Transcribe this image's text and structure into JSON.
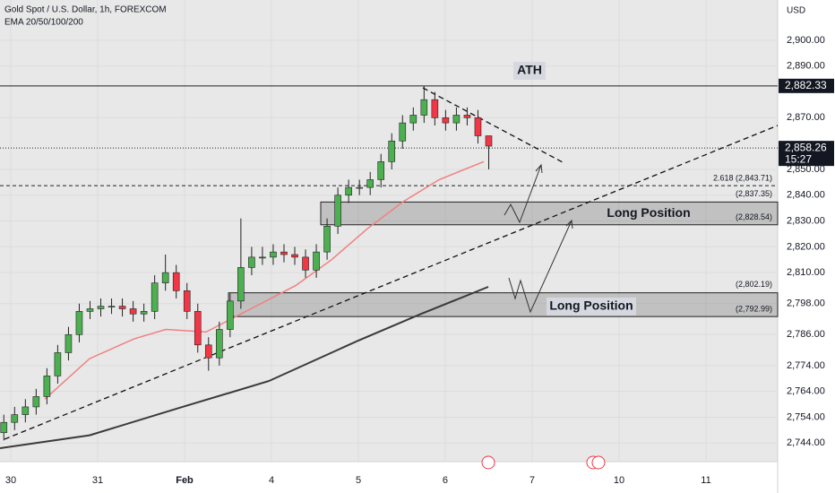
{
  "chart_data": {
    "type": "candlestick",
    "title": "Gold Spot / U.S. Dollar, 1h, FOREXCOM",
    "subtitle": "EMA 20/50/100/200",
    "currency": "USD",
    "x": [
      -0.08,
      0.044,
      0.168,
      0.292,
      0.416,
      0.54,
      0.664,
      0.788,
      0.912,
      1.036,
      1.16,
      1.284,
      1.408,
      1.532,
      1.656,
      1.78,
      1.904,
      2.028,
      2.152,
      2.276,
      2.4,
      2.524,
      2.648,
      2.772,
      2.896,
      3.02,
      3.144,
      3.268,
      3.392,
      3.516,
      3.64,
      3.764,
      3.888,
      4.012,
      4.136,
      4.26,
      4.384,
      4.508,
      4.632,
      4.756,
      4.88,
      5.004,
      5.128,
      5.252,
      5.376,
      5.5
    ],
    "open": [
      2748,
      2752,
      2755,
      2758,
      2762,
      2770,
      2779,
      2786,
      2795,
      2796,
      2797,
      2797,
      2796,
      2794,
      2795,
      2806,
      2810,
      2803,
      2795,
      2782,
      2777,
      2788,
      2799,
      2812,
      2816,
      2816,
      2818,
      2817,
      2816,
      2811,
      2818,
      2828,
      2840,
      2843,
      2843,
      2846,
      2853,
      2861,
      2868,
      2871,
      2877,
      2870,
      2868,
      2871,
      2870,
      2863
    ],
    "high": [
      2755,
      2758,
      2761,
      2765,
      2773,
      2782,
      2789,
      2798,
      2799,
      2800,
      2800,
      2800,
      2799,
      2798,
      2809,
      2817,
      2813,
      2806,
      2798,
      2785,
      2791,
      2802,
      2831,
      2820,
      2820,
      2821,
      2821,
      2820,
      2819,
      2821,
      2831,
      2843,
      2846,
      2846,
      2849,
      2856,
      2864,
      2871,
      2874,
      2882.33,
      2880,
      2873,
      2874,
      2874,
      2873,
      2862
    ],
    "low": [
      2745,
      2749,
      2752,
      2755,
      2759,
      2767,
      2776,
      2783,
      2792,
      2793,
      2794,
      2793,
      2791,
      2791,
      2792,
      2803,
      2800,
      2792,
      2779,
      2772,
      2774,
      2785,
      2796,
      2809,
      2813,
      2813,
      2814,
      2813,
      2808,
      2808,
      2815,
      2825,
      2837,
      2840,
      2840,
      2843,
      2850,
      2858,
      2865,
      2868,
      2867,
      2865,
      2865,
      2867,
      2860,
      2850
    ],
    "close": [
      2752,
      2755,
      2758,
      2762,
      2770,
      2779,
      2786,
      2795,
      2796,
      2797,
      2797,
      2796,
      2794,
      2795,
      2806,
      2810,
      2803,
      2795,
      2782,
      2777,
      2788,
      2799,
      2812,
      2816,
      2816,
      2818,
      2817,
      2816,
      2811,
      2818,
      2828,
      2840,
      2843,
      2843,
      2846,
      2853,
      2861,
      2868,
      2871,
      2877,
      2870,
      2868,
      2871,
      2870,
      2863,
      2859
    ],
    "up_color": "#4caf50",
    "down_color": "#f23645",
    "lines": [
      {
        "color": "#f08080",
        "x": [
          0.392,
          0.907,
          1.423,
          1.784,
          2.247,
          2.763,
          3.278,
          3.691,
          4.103,
          4.515,
          4.928,
          5.443
        ],
        "values": [
          2761,
          2776.7,
          2784.4,
          2788,
          2787,
          2796,
          2805,
          2815,
          2827,
          2837.5,
          2846,
          2853
        ]
      },
      {
        "color": "#3a3a3a",
        "x": [
          -0.124,
          0.907,
          1.938,
          2.969,
          4,
          4.722,
          5.495
        ],
        "values": [
          2742,
          2747,
          2757.6,
          2768,
          2783.7,
          2794,
          2804.5
        ]
      }
    ],
    "xlim": [
      -0.124,
      8.825
    ],
    "xticks": [
      {
        "value": 0,
        "label": "30"
      },
      {
        "value": 1,
        "label": "31"
      },
      {
        "value": 2,
        "label": "Feb"
      },
      {
        "value": 3,
        "label": "4"
      },
      {
        "value": 4,
        "label": "5"
      },
      {
        "value": 5,
        "label": "6"
      },
      {
        "value": 6,
        "label": "7"
      },
      {
        "value": 7,
        "label": "10"
      },
      {
        "value": 8,
        "label": "11"
      }
    ],
    "ylim": [
      2736.8,
      2915.6
    ],
    "yticks": [
      {
        "value": 2900,
        "label": "2,900.00"
      },
      {
        "value": 2890,
        "label": "2,890.00"
      },
      {
        "value": 2870,
        "label": "2,870.00"
      },
      {
        "value": 2850,
        "label": "2,850.00"
      },
      {
        "value": 2840,
        "label": "2,840.00"
      },
      {
        "value": 2830,
        "label": "2,830.00"
      },
      {
        "value": 2820,
        "label": "2,820.00"
      },
      {
        "value": 2810,
        "label": "2,810.00"
      },
      {
        "value": 2798,
        "label": "2,798.00"
      },
      {
        "value": 2786,
        "label": "2,786.00"
      },
      {
        "value": 2774,
        "label": "2,774.00"
      },
      {
        "value": 2764,
        "label": "2,764.00"
      },
      {
        "value": 2754,
        "label": "2,754.00"
      },
      {
        "value": 2744,
        "label": "2,744.00"
      }
    ],
    "price_tags": [
      {
        "value": 2882.33,
        "label": "2,882.33"
      },
      {
        "value": 2858.26,
        "label": "2,858.26"
      }
    ],
    "countdown": "15:27",
    "fib_level": {
      "value": 2843.71,
      "label": "2.618 (2,843.71)"
    },
    "zones": [
      {
        "top": {
          "value": 2837.35,
          "label": "(2,837.35)"
        },
        "bottom": {
          "value": 2828.54,
          "label": "(2,828.54)"
        },
        "start": 3.567,
        "text": "Long Position"
      },
      {
        "top": {
          "value": 2802.19,
          "label": "(2,802.19)"
        },
        "bottom": {
          "value": 2792.99,
          "label": "(2,792.99)"
        },
        "start": 2.505,
        "text": "Long Position"
      }
    ],
    "annotation": "ATH"
  }
}
